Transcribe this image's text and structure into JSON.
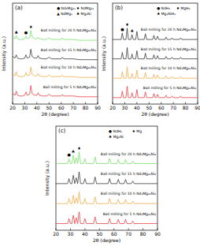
{
  "chart_data": [
    {
      "type": "line",
      "title": "(a)",
      "x_label": "2θ (degree)",
      "y_label": "Intensity (a.u.)",
      "xlim": [
        20,
        90
      ],
      "xticks": [
        20,
        30,
        40,
        50,
        60,
        70,
        80,
        90
      ],
      "ylim": [
        0,
        125
      ],
      "tick_labels": "x",
      "legend": "top-right",
      "phases": [
        {
          "symbol": "●",
          "name": "Nd₅Mg₄₁"
        },
        {
          "symbol": "♦",
          "name": "NdMg₁₂"
        },
        {
          "symbol": "▲",
          "name": "NdMg₃"
        },
        {
          "symbol": "♣",
          "name": "Mg₂Ni"
        }
      ],
      "peak_marks": [
        {
          "x": 23,
          "y": 88,
          "phase": 2
        },
        {
          "x": 31,
          "y": 87,
          "phase": 0
        },
        {
          "x": 35,
          "y": 94,
          "phase": 1
        }
      ],
      "x": [
        20,
        22,
        23,
        24,
        26,
        28,
        30,
        31,
        32,
        34,
        35,
        36,
        38,
        40,
        41,
        42,
        45,
        48,
        50,
        52,
        55,
        60,
        61,
        62,
        65,
        70,
        75,
        80,
        85,
        90
      ],
      "series": [
        {
          "name": "Ball milling for 5 h Nd₄Mg₈₀Ni₈",
          "color": "#e8262b",
          "values": [
            13,
            11,
            16,
            11,
            10,
            10,
            11,
            15,
            11,
            12,
            23,
            13,
            11,
            11,
            14,
            11,
            10,
            10,
            12,
            10,
            10,
            10,
            12,
            10,
            10,
            10,
            9,
            9,
            9,
            9
          ]
        },
        {
          "name": "Ball milling for 10 h Nd₄Mg₈₀Ni₈",
          "color": "#f0a030",
          "values": [
            37,
            35,
            40,
            35,
            34,
            34,
            35,
            39,
            35,
            36,
            46,
            37,
            35,
            35,
            38,
            35,
            34,
            34,
            36,
            34,
            34,
            34,
            36,
            34,
            34,
            34,
            33,
            33,
            33,
            33
          ]
        },
        {
          "name": "Ball milling for 15 h Nd₄Mg₈₀Ni₈",
          "color": "#222222",
          "values": [
            59,
            57,
            61,
            57,
            56,
            56,
            57,
            61,
            57,
            58,
            68,
            59,
            57,
            57,
            60,
            57,
            56,
            56,
            58,
            56,
            56,
            56,
            58,
            56,
            56,
            56,
            55,
            55,
            55,
            55
          ]
        },
        {
          "name": "Ball milling for 20 h Nd₄Mg₈₀Ni₈",
          "color": "#66dd55",
          "values": [
            83,
            81,
            85,
            81,
            80,
            80,
            81,
            84,
            81,
            82,
            91,
            83,
            81,
            81,
            83,
            81,
            80,
            80,
            82,
            80,
            80,
            80,
            82,
            80,
            80,
            80,
            79,
            79,
            79,
            79
          ]
        }
      ]
    },
    {
      "type": "line",
      "title": "(b)",
      "x_label": "2θ (degree)",
      "y_label": "Intensity (a.u.)",
      "xlim": [
        20,
        90
      ],
      "xticks": [
        20,
        30,
        40,
        50,
        60,
        70,
        80,
        90
      ],
      "ylim": [
        0,
        125
      ],
      "tick_labels": "x",
      "legend": "top-right",
      "phases": [
        {
          "symbol": "●",
          "name": "NdH₃"
        },
        {
          "symbol": "♦",
          "name": "MgH₂"
        },
        {
          "symbol": "♣",
          "name": "Mg₂NiH₄"
        }
      ],
      "peak_marks": [
        {
          "x": 28,
          "y": 91,
          "phase": 0
        },
        {
          "x": 32,
          "y": 97,
          "phase": 1
        },
        {
          "x": 36,
          "y": 89,
          "phase": 2
        }
      ],
      "x": [
        20,
        25,
        27,
        28,
        29,
        31,
        32,
        33,
        35,
        36,
        37,
        39,
        40,
        41,
        46,
        47,
        48,
        53,
        54,
        55,
        56,
        57,
        58,
        63,
        64,
        65,
        68,
        69,
        70,
        75,
        76,
        77,
        80,
        90
      ],
      "series": [
        {
          "name": "Ball milling for 5 h Nd₄Mg₈₀Ni₈",
          "color": "#e8262b",
          "values": [
            8,
            8,
            8,
            16,
            8,
            8,
            22,
            8,
            8,
            14,
            8,
            8,
            18,
            8,
            8,
            15,
            8,
            8,
            13,
            8,
            8,
            12,
            8,
            8,
            11,
            8,
            8,
            10,
            8,
            8,
            10,
            8,
            8,
            8
          ]
        },
        {
          "name": "Ball milling for 10 h Nd₄Mg₈₀Ni₈",
          "color": "#f0a030",
          "values": [
            32,
            32,
            32,
            40,
            32,
            32,
            46,
            32,
            32,
            38,
            32,
            32,
            42,
            32,
            32,
            39,
            32,
            32,
            37,
            32,
            32,
            36,
            32,
            32,
            35,
            32,
            32,
            34,
            32,
            32,
            34,
            32,
            32,
            32
          ]
        },
        {
          "name": "Ball milling for 15 h Nd₄Mg₈₀Ni₈",
          "color": "#222222",
          "values": [
            56,
            56,
            56,
            64,
            56,
            56,
            70,
            56,
            56,
            62,
            56,
            56,
            66,
            56,
            56,
            63,
            56,
            56,
            61,
            56,
            56,
            60,
            56,
            56,
            59,
            56,
            56,
            58,
            56,
            56,
            58,
            56,
            56,
            56
          ]
        },
        {
          "name": "Ball milling for 20 h Nd₄Mg₈₀Ni₈",
          "color": "#222222",
          "values": [
            80,
            80,
            80,
            88,
            80,
            80,
            94,
            80,
            80,
            86,
            80,
            80,
            90,
            80,
            80,
            87,
            80,
            80,
            85,
            80,
            80,
            84,
            80,
            80,
            83,
            80,
            80,
            82,
            80,
            80,
            82,
            80,
            80,
            80
          ]
        }
      ]
    },
    {
      "type": "line",
      "title": "(c)",
      "x_label": "2θ (degree)",
      "y_label": "Intensity (a.u.)",
      "xlim": [
        20,
        90
      ],
      "xticks": [
        20,
        30,
        40,
        50,
        60,
        70,
        80,
        90
      ],
      "ylim": [
        0,
        125
      ],
      "tick_labels": "x",
      "legend": "top-right",
      "phases": [
        {
          "symbol": "●",
          "name": "NdH₂"
        },
        {
          "symbol": "♦",
          "name": "Mg"
        },
        {
          "symbol": "♣",
          "name": "Mg₂Ni"
        }
      ],
      "peak_marks": [
        {
          "x": 29,
          "y": 89,
          "phase": 0
        },
        {
          "x": 32,
          "y": 93,
          "phase": 2
        },
        {
          "x": 36,
          "y": 97,
          "phase": 1
        }
      ],
      "x": [
        20,
        28,
        29,
        30,
        31,
        32,
        33,
        34,
        35,
        36,
        37,
        38,
        39,
        40,
        41,
        42,
        46,
        47,
        48,
        56,
        57,
        58,
        62,
        63,
        64,
        67,
        68,
        69,
        72,
        73,
        74,
        80,
        90
      ],
      "series": [
        {
          "name": "Ball milling for 5 h Nd₄Mg₈₀Ni₈",
          "color": "#e8262b",
          "values": [
            8,
            8,
            14,
            8,
            8,
            18,
            8,
            15,
            8,
            22,
            8,
            8,
            8,
            14,
            8,
            8,
            8,
            16,
            8,
            8,
            14,
            8,
            8,
            13,
            8,
            8,
            13,
            8,
            8,
            11,
            8,
            8,
            8
          ]
        },
        {
          "name": "Ball milling for 10 h Nd₄Mg₈₀Ni₈",
          "color": "#f0a030",
          "values": [
            32,
            32,
            38,
            32,
            32,
            42,
            32,
            39,
            32,
            46,
            32,
            32,
            32,
            38,
            32,
            32,
            32,
            40,
            32,
            32,
            38,
            32,
            32,
            37,
            32,
            32,
            37,
            32,
            32,
            35,
            32,
            32,
            32
          ]
        },
        {
          "name": "Ball milling for 15 h Nd₄Mg₈₀Ni₈",
          "color": "#222222",
          "values": [
            56,
            56,
            62,
            56,
            56,
            66,
            56,
            63,
            56,
            70,
            56,
            56,
            56,
            62,
            56,
            56,
            56,
            64,
            56,
            56,
            62,
            56,
            56,
            61,
            56,
            56,
            61,
            56,
            56,
            59,
            56,
            56,
            56
          ]
        },
        {
          "name": "Ball milling for 20 h Nd₄Mg₈₀Ni₈",
          "color": "#66dd55",
          "values": [
            80,
            80,
            86,
            80,
            80,
            90,
            80,
            87,
            80,
            94,
            80,
            80,
            80,
            86,
            80,
            80,
            80,
            88,
            80,
            80,
            86,
            80,
            80,
            85,
            80,
            80,
            85,
            80,
            80,
            83,
            80,
            80,
            80
          ]
        }
      ]
    }
  ]
}
